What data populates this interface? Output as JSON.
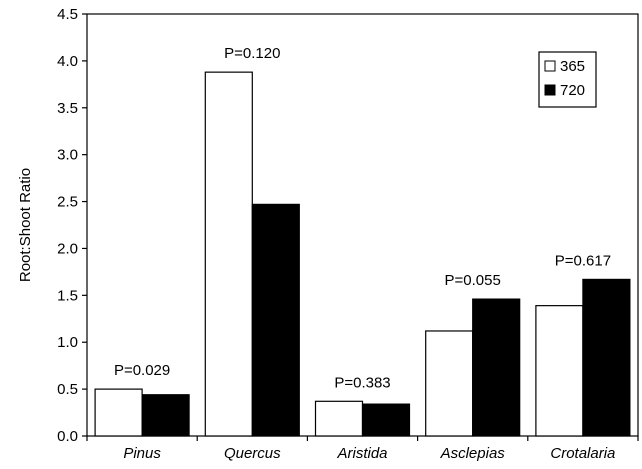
{
  "chart_data": {
    "type": "bar",
    "title": "",
    "xlabel": "",
    "ylabel": "Root:Shoot Ratio",
    "ylim": [
      0,
      4.5
    ],
    "yticks": [
      "0.0",
      "0.5",
      "1.0",
      "1.5",
      "2.0",
      "2.5",
      "3.0",
      "3.5",
      "4.0",
      "4.5"
    ],
    "grid": false,
    "legend_position": "top-right",
    "categories": [
      "Pinus",
      "Quercus",
      "Aristida",
      "Asclepias",
      "Crotalaria"
    ],
    "series": [
      {
        "name": "365",
        "color": "#ffffff",
        "values": [
          0.5,
          3.88,
          0.37,
          1.12,
          1.39
        ]
      },
      {
        "name": "720",
        "color": "#000000",
        "values": [
          0.44,
          2.47,
          0.34,
          1.46,
          1.67
        ]
      }
    ],
    "annotations": [
      "P=0.029",
      "P=0.120",
      "P=0.383",
      "P=0.055",
      "P=0.617"
    ]
  }
}
